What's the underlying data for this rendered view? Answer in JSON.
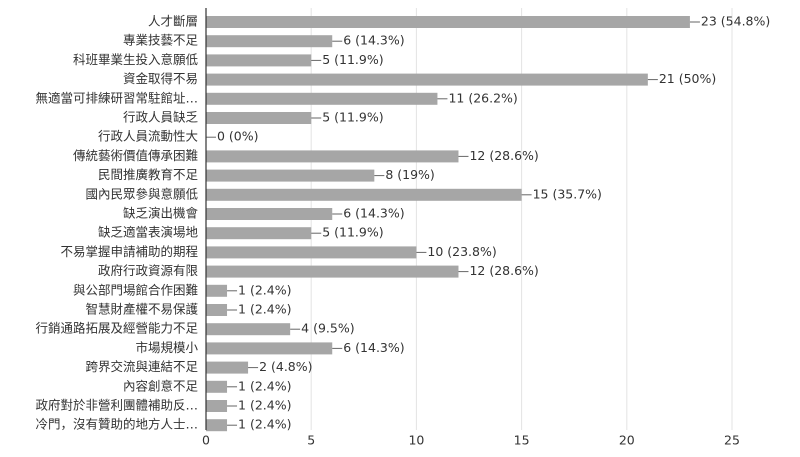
{
  "chart_data": {
    "type": "bar",
    "orientation": "horizontal",
    "title": "",
    "xlabel": "",
    "ylabel": "",
    "xlim": [
      0,
      25
    ],
    "x_ticks": [
      0,
      5,
      10,
      15,
      20,
      25
    ],
    "grid": true,
    "legend": "none",
    "bar_color": "#a6a6a6",
    "categories": [
      "人才斷層",
      "專業技藝不足",
      "科班畢業生投入意願低",
      "資金取得不易",
      "無適當可排練研習常駐館址…",
      "行政人員缺乏",
      "行政人員流動性大",
      "傳統藝術價值傳承困難",
      "民間推廣教育不足",
      "國內民眾參與意願低",
      "缺乏演出機會",
      "缺乏適當表演場地",
      "不易掌握申請補助的期程",
      "政府行政資源有限",
      "與公部門場館合作困難",
      "智慧財產權不易保護",
      "行銷通路拓展及經營能力不足",
      "市場規模小",
      "跨界交流與連結不足",
      "內容創意不足",
      "政府對於非營利團體補助反…",
      "冷門，沒有贊助的地方人士…"
    ],
    "values": [
      23,
      6,
      5,
      21,
      11,
      5,
      0,
      12,
      8,
      15,
      6,
      5,
      10,
      12,
      1,
      1,
      4,
      6,
      2,
      1,
      1,
      1
    ],
    "value_labels": [
      "23 (54.8%)",
      "6 (14.3%)",
      "5 (11.9%)",
      "21 (50%)",
      "11 (26.2%)",
      "5 (11.9%)",
      "0 (0%)",
      "12 (28.6%)",
      "8 (19%)",
      "15 (35.7%)",
      "6 (14.3%)",
      "5 (11.9%)",
      "10 (23.8%)",
      "12 (28.6%)",
      "1 (2.4%)",
      "1 (2.4%)",
      "4 (9.5%)",
      "6 (14.3%)",
      "2 (4.8%)",
      "1 (2.4%)",
      "1 (2.4%)",
      "1 (2.4%)"
    ]
  }
}
